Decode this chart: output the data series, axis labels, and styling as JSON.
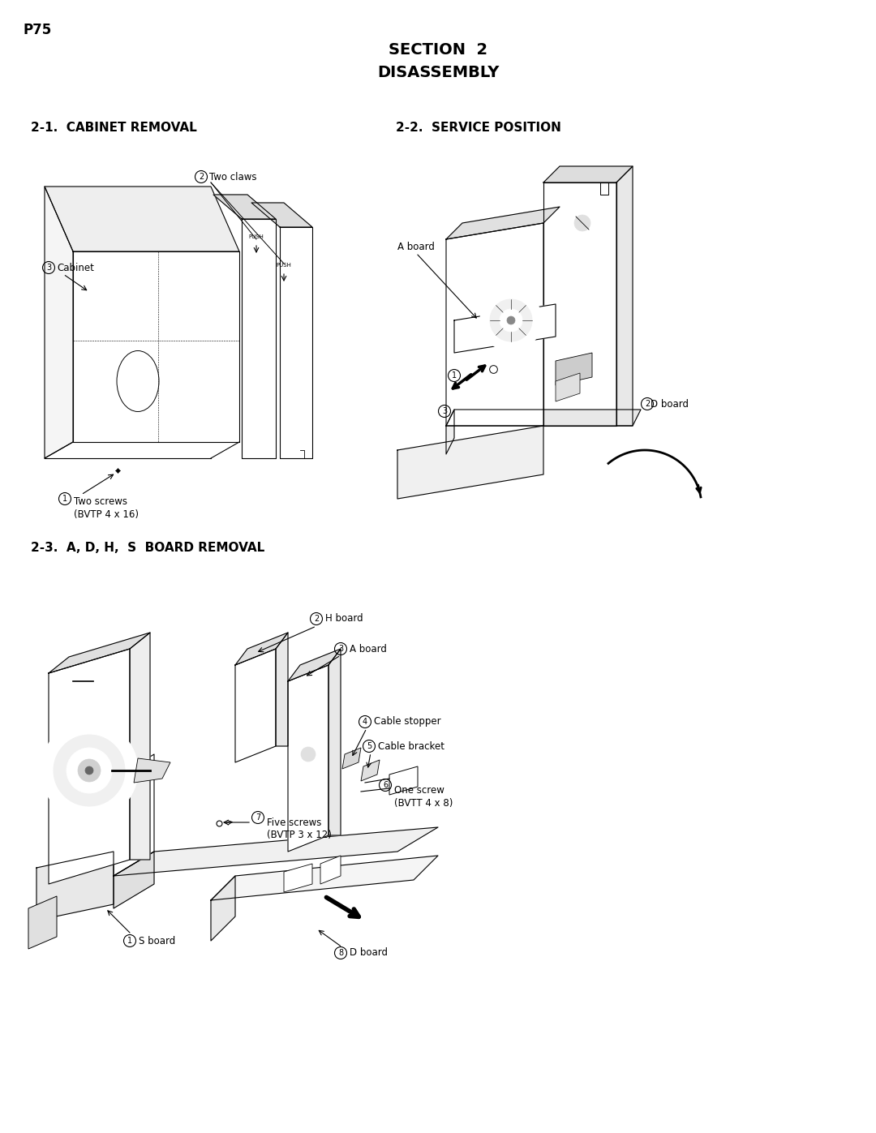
{
  "page_label": "P75",
  "title_line1": "SECTION  2",
  "title_line2": "DISASSEMBLY",
  "sec21_title": "2-1.  CABINET REMOVAL",
  "sec22_title": "2-2.  SERVICE POSITION",
  "sec23_title": "2-3.  A, D, H,  S  BOARD REMOVAL",
  "bg_color": "#ffffff",
  "lbl_two_claws": "Two claws",
  "lbl_cabinet": "Cabinet",
  "lbl_two_screws_line1": "Two screws",
  "lbl_two_screws_line2": "(BVTP 4 x 16)",
  "lbl_a_board": "A board",
  "lbl_d_board": "D board",
  "lbl_s_board": "S board",
  "lbl_h_board": "H board",
  "lbl_a_board2": "A board",
  "lbl_cable_stopper": "Cable stopper",
  "lbl_cable_bracket": "Cable bracket",
  "lbl_one_screw_line1": "One screw",
  "lbl_one_screw_line2": "(BVTT 4 x 8)",
  "lbl_five_screws_line1": "Five screws",
  "lbl_five_screws_line2": "(BVTP 3 x 12)",
  "lbl_d_board2": "D board",
  "push": "PUSH"
}
